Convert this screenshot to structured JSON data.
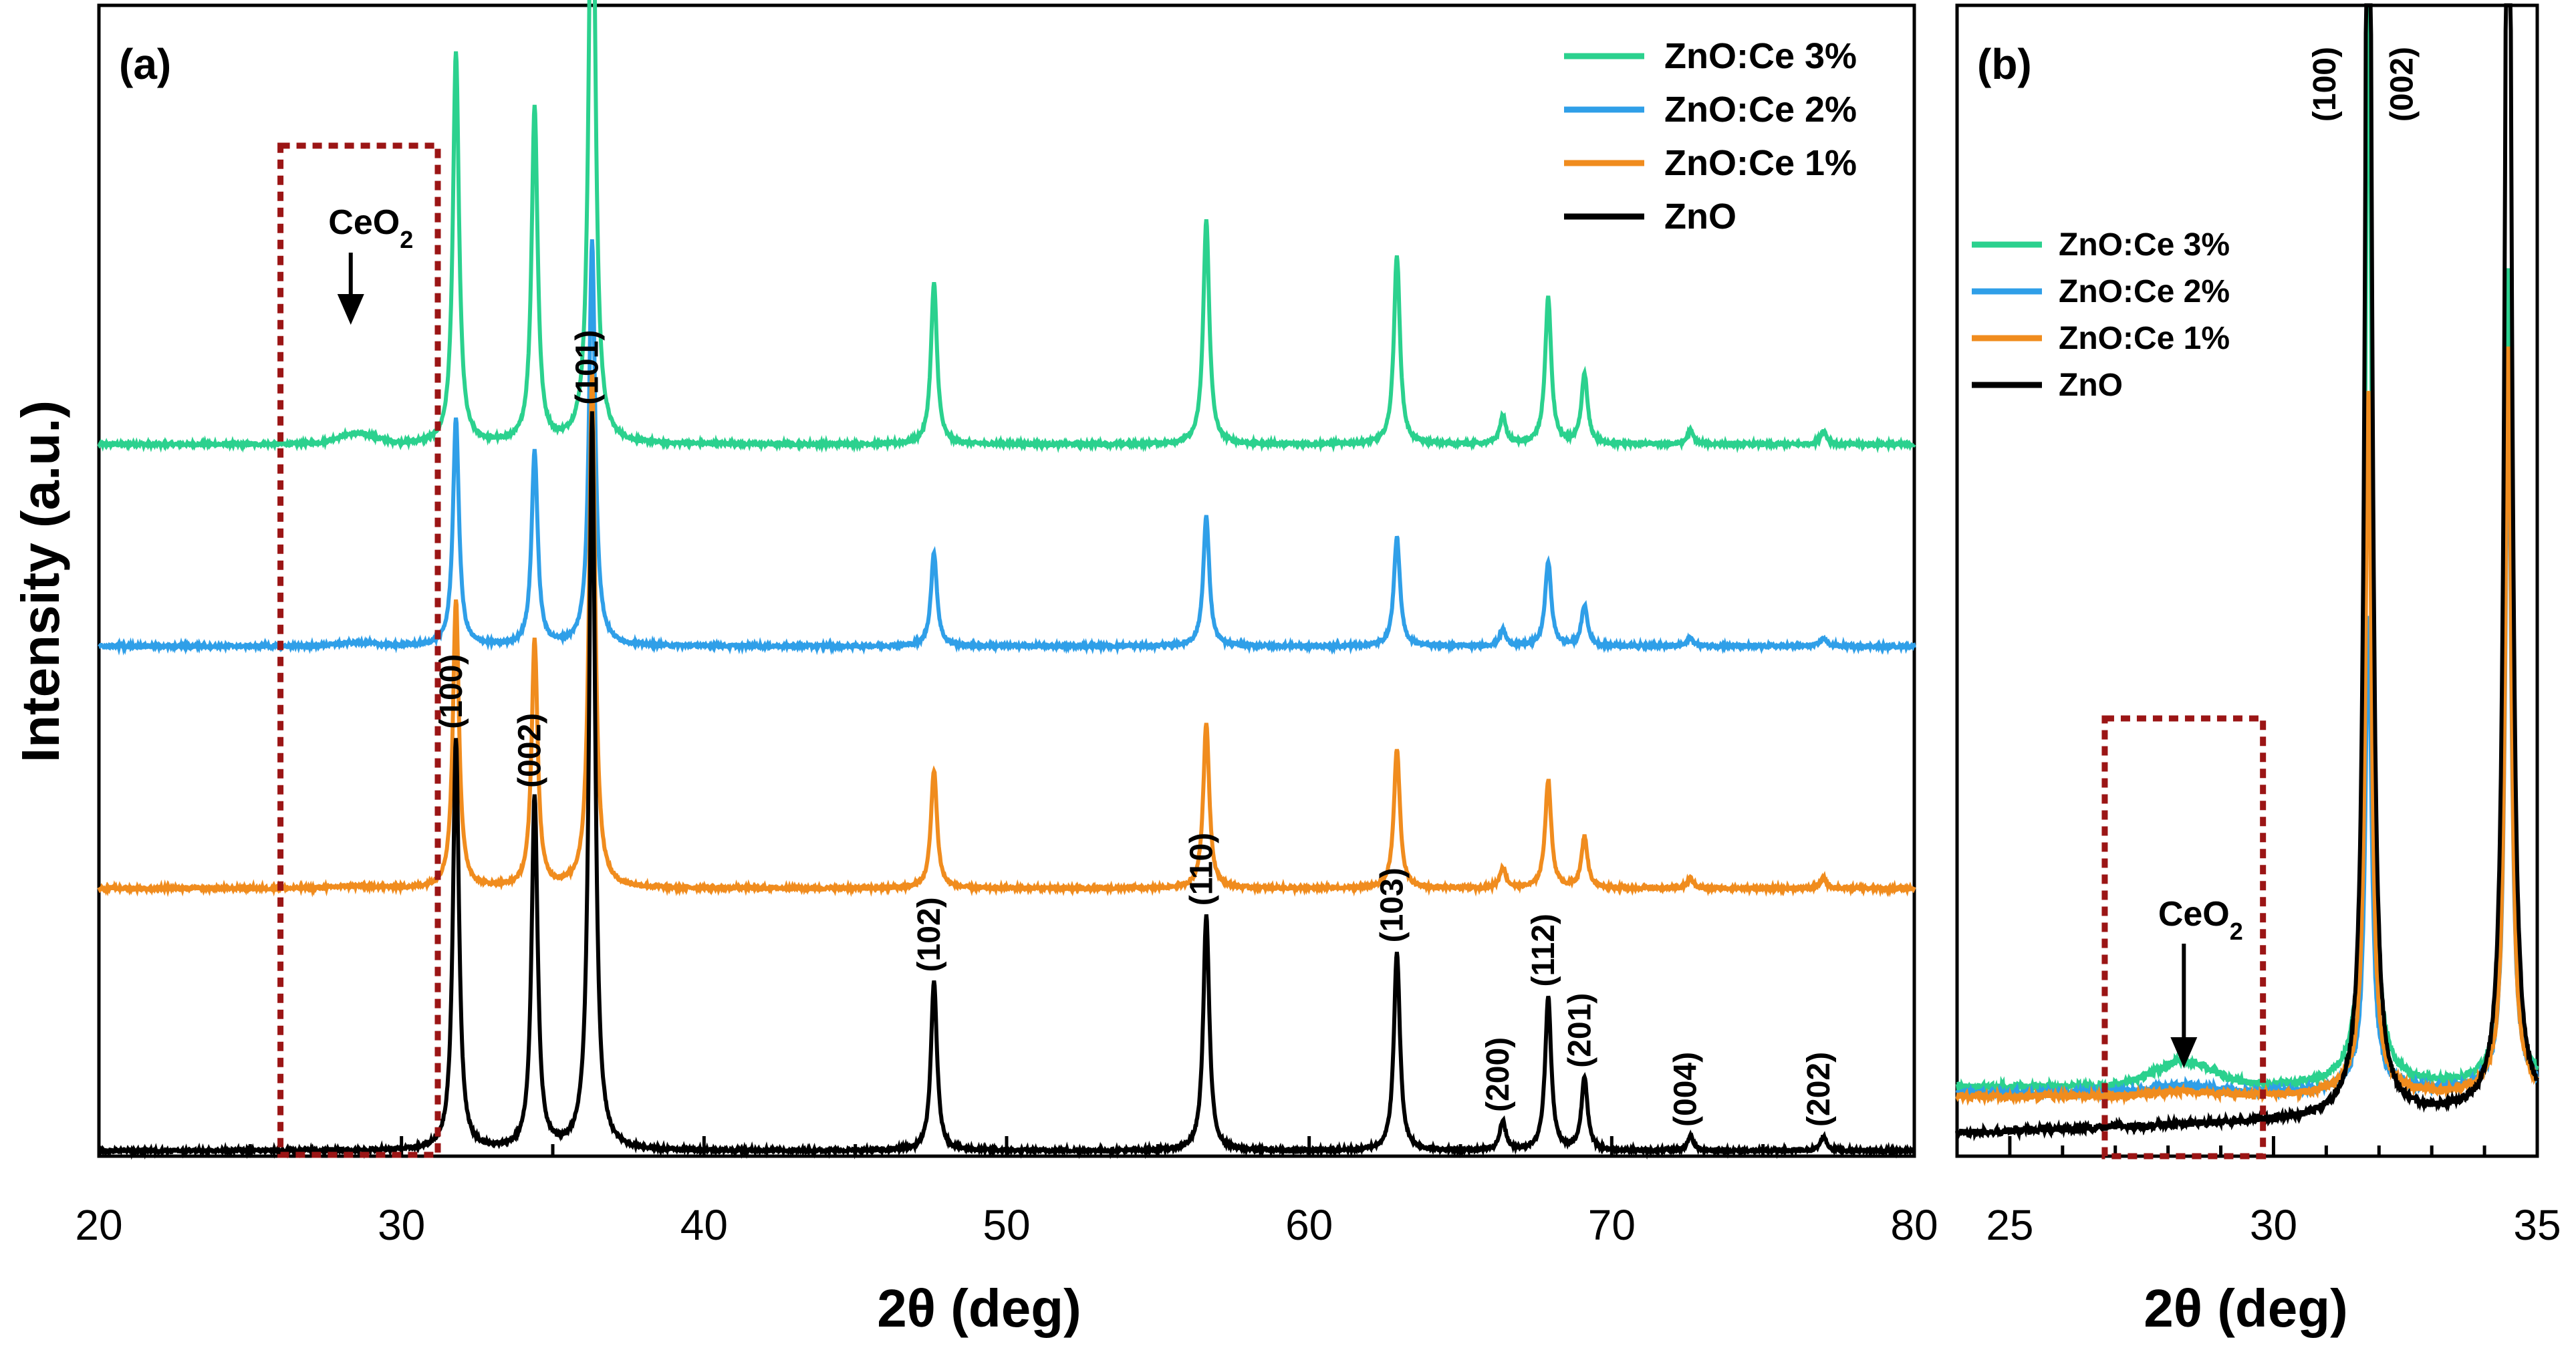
{
  "chart_data": [
    {
      "panel": "a",
      "type": "line",
      "panel_label": "(a)",
      "xlabel": "2θ (deg)",
      "ylabel": "Intensity (a.u.)",
      "xlim": [
        20,
        80
      ],
      "xticks": [
        20,
        30,
        40,
        50,
        60,
        70,
        80
      ],
      "legend_position": "top-right",
      "series": [
        {
          "name": "ZnO:Ce 3%",
          "color": "#2bd18e",
          "offset": 0.7,
          "scale": 0.95,
          "ceo2": 0.01
        },
        {
          "name": "ZnO:Ce 2%",
          "color": "#2f9fe8",
          "offset": 0.5,
          "scale": 0.55,
          "ceo2": 0.003
        },
        {
          "name": "ZnO:Ce 1%",
          "color": "#f08c1e",
          "offset": 0.26,
          "scale": 0.7,
          "ceo2": 0.002
        },
        {
          "name": "ZnO",
          "color": "#000000",
          "offset": 0.0,
          "scale": 1.0,
          "ceo2": 0.0
        }
      ],
      "peaks": [
        {
          "hkl": "(100)",
          "x": 31.8,
          "rel": 0.56
        },
        {
          "hkl": "(002)",
          "x": 34.4,
          "rel": 0.48
        },
        {
          "hkl": "(101)",
          "x": 36.3,
          "rel": 1.0
        },
        {
          "hkl": "(102)",
          "x": 47.6,
          "rel": 0.23
        },
        {
          "hkl": "(110)",
          "x": 56.6,
          "rel": 0.32
        },
        {
          "hkl": "(103)",
          "x": 62.9,
          "rel": 0.27
        },
        {
          "hkl": "(200)",
          "x": 66.4,
          "rel": 0.04
        },
        {
          "hkl": "(112)",
          "x": 67.9,
          "rel": 0.21
        },
        {
          "hkl": "(201)",
          "x": 69.1,
          "rel": 0.1
        },
        {
          "hkl": "(004)",
          "x": 72.6,
          "rel": 0.02
        },
        {
          "hkl": "(202)",
          "x": 77.0,
          "rel": 0.02
        }
      ],
      "annotation": {
        "text": "CeO",
        "subscript": "2",
        "x": 28.5
      },
      "highlight_box": {
        "x_range": [
          26.0,
          31.2
        ]
      }
    },
    {
      "panel": "b",
      "type": "line",
      "panel_label": "(b)",
      "xlabel": "2θ (deg)",
      "xlim": [
        24,
        35
      ],
      "xticks": [
        25,
        30,
        35
      ],
      "legend_position": "upper-left",
      "series": [
        {
          "name": "ZnO:Ce 3%",
          "color": "#2bd18e"
        },
        {
          "name": "ZnO:Ce 2%",
          "color": "#2f9fe8"
        },
        {
          "name": "ZnO:Ce 1%",
          "color": "#f08c1e"
        },
        {
          "name": "ZnO",
          "color": "#000000"
        }
      ],
      "peak_labels": [
        {
          "hkl": "(100)",
          "x": 31.8
        },
        {
          "hkl": "(002)",
          "x": 34.4
        }
      ],
      "annotation": {
        "text": "CeO",
        "subscript": "2",
        "x": 28.3
      },
      "highlight_box": {
        "x_range": [
          26.8,
          29.8
        ]
      }
    }
  ]
}
